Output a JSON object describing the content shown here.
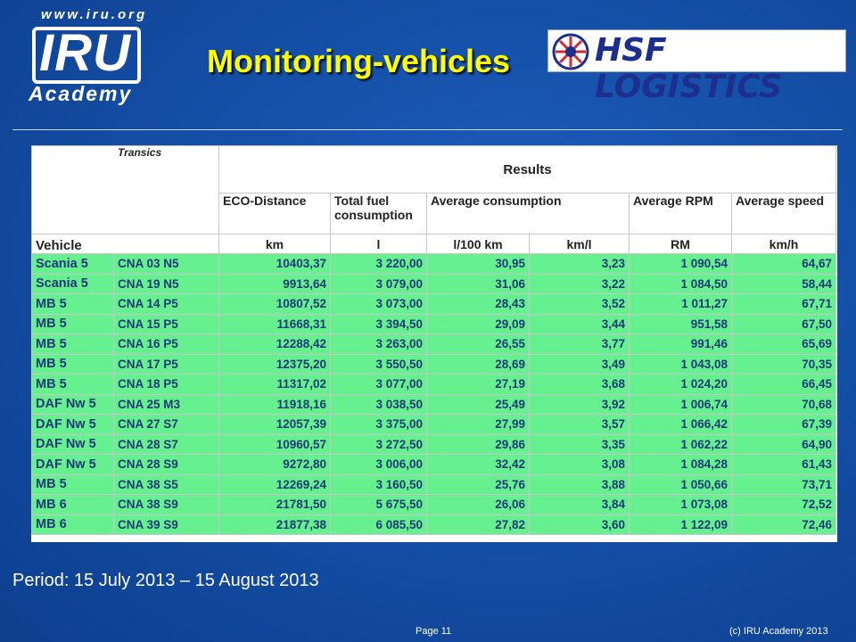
{
  "header": {
    "iru_url": "www.iru.org",
    "iru_logo_text": "IRU",
    "iru_academy": "Academy",
    "title": "Monitoring-vehicles",
    "partner_logo_text": "HSF LOGISTICS"
  },
  "table": {
    "brand_label": "Transics",
    "results_label": "Results",
    "vehicle_header": "Vehicle",
    "columns": [
      {
        "label": "ECO-Distance",
        "unit": "km"
      },
      {
        "label": "Total fuel consumption",
        "unit": "l"
      },
      {
        "label": "Average consumption",
        "unit": "l/100 km",
        "unit2": "km/l"
      },
      {
        "label": "Average RPM",
        "unit": "RM"
      },
      {
        "label": "Average speed",
        "unit": "km/h"
      }
    ],
    "rows": [
      {
        "vehicle": "Scania 5",
        "plate": "CNA 03 N5",
        "eco": "10403,37",
        "fuel": "3 220,00",
        "l100": "30,95",
        "kml": "3,23",
        "rpm": "1 090,54",
        "speed": "64,67"
      },
      {
        "vehicle": "Scania 5",
        "plate": "CNA 19 N5",
        "eco": "9913,64",
        "fuel": "3 079,00",
        "l100": "31,06",
        "kml": "3,22",
        "rpm": "1 084,50",
        "speed": "58,44"
      },
      {
        "vehicle": "MB 5",
        "plate": "CNA 14 P5",
        "eco": "10807,52",
        "fuel": "3 073,00",
        "l100": "28,43",
        "kml": "3,52",
        "rpm": "1 011,27",
        "speed": "67,71"
      },
      {
        "vehicle": "MB 5",
        "plate": "CNA 15 P5",
        "eco": "11668,31",
        "fuel": "3 394,50",
        "l100": "29,09",
        "kml": "3,44",
        "rpm": "951,58",
        "speed": "67,50"
      },
      {
        "vehicle": "MB 5",
        "plate": "CNA 16 P5",
        "eco": "12288,42",
        "fuel": "3 263,00",
        "l100": "26,55",
        "kml": "3,77",
        "rpm": "991,46",
        "speed": "65,69"
      },
      {
        "vehicle": "MB 5",
        "plate": "CNA 17 P5",
        "eco": "12375,20",
        "fuel": "3 550,50",
        "l100": "28,69",
        "kml": "3,49",
        "rpm": "1 043,08",
        "speed": "70,35"
      },
      {
        "vehicle": "MB 5",
        "plate": "CNA 18 P5",
        "eco": "11317,02",
        "fuel": "3 077,00",
        "l100": "27,19",
        "kml": "3,68",
        "rpm": "1 024,20",
        "speed": "66,45"
      },
      {
        "vehicle": "DAF Nw 5",
        "plate": "CNA 25 M3",
        "eco": "11918,16",
        "fuel": "3 038,50",
        "l100": "25,49",
        "kml": "3,92",
        "rpm": "1 006,74",
        "speed": "70,68"
      },
      {
        "vehicle": "DAF Nw 5",
        "plate": "CNA 27 S7",
        "eco": "12057,39",
        "fuel": "3 375,00",
        "l100": "27,99",
        "kml": "3,57",
        "rpm": "1 066,42",
        "speed": "67,39"
      },
      {
        "vehicle": "DAF Nw 5",
        "plate": "CNA 28 S7",
        "eco": "10960,57",
        "fuel": "3 272,50",
        "l100": "29,86",
        "kml": "3,35",
        "rpm": "1 062,22",
        "speed": "64,90"
      },
      {
        "vehicle": "DAF Nw 5",
        "plate": "CNA 28 S9",
        "eco": "9272,80",
        "fuel": "3 006,00",
        "l100": "32,42",
        "kml": "3,08",
        "rpm": "1 084,28",
        "speed": "61,43"
      },
      {
        "vehicle": "MB 5",
        "plate": "CNA 38 S5",
        "eco": "12269,24",
        "fuel": "3 160,50",
        "l100": "25,76",
        "kml": "3,88",
        "rpm": "1 050,66",
        "speed": "73,71"
      },
      {
        "vehicle": "MB 6",
        "plate": "CNA 38 S9",
        "eco": "21781,50",
        "fuel": "5 675,50",
        "l100": "26,06",
        "kml": "3,84",
        "rpm": "1 073,08",
        "speed": "72,52"
      },
      {
        "vehicle": "MB 6",
        "plate": "CNA 39 S9",
        "eco": "21877,38",
        "fuel": "6 085,50",
        "l100": "27,82",
        "kml": "3,60",
        "rpm": "1 122,09",
        "speed": "72,46"
      }
    ]
  },
  "period": "Period: 15 July 2013 – 15 August 2013",
  "footer": {
    "page": "Page 11",
    "copyright": "(c) IRU Academy 2013"
  }
}
